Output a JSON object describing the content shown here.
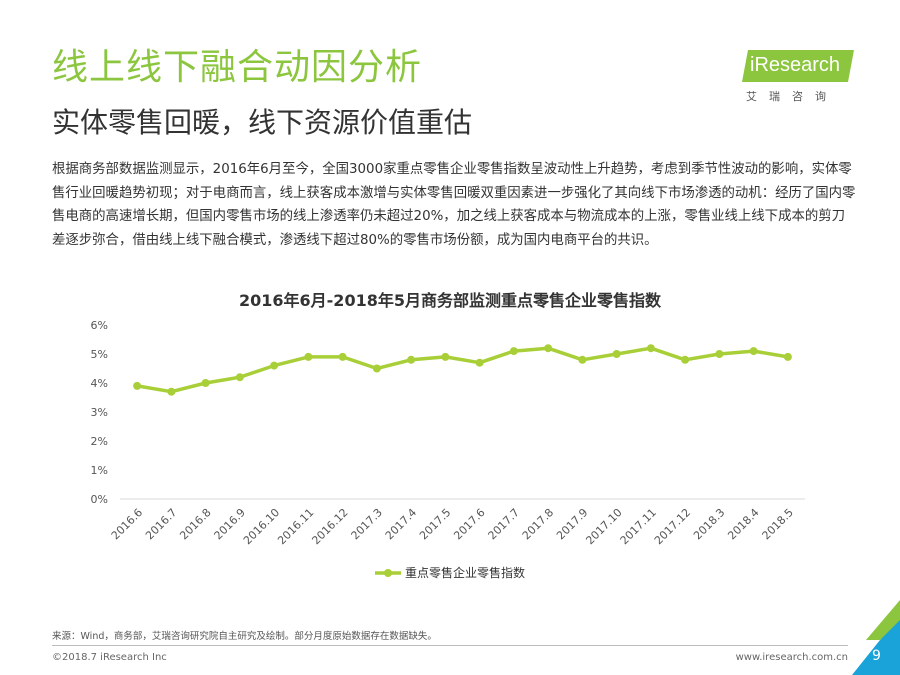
{
  "header": {
    "title": "线上线下融合动因分析",
    "subtitle": "实体零售回暖，线下资源价值重估"
  },
  "logo": {
    "name": "iResearch",
    "cn": "艾瑞咨询"
  },
  "body_text": "根据商务部数据监测显示，2016年6月至今，全国3000家重点零售企业零售指数呈波动性上升趋势，考虑到季节性波动的影响，实体零售行业回暖趋势初现；对于电商而言，线上获客成本激增与实体零售回暖双重因素进一步强化了其向线下市场渗透的动机：经历了国内零售电商的高速增长期，但国内零售市场的线上渗透率仍未超过20%，加之线上获客成本与物流成本的上涨，零售业线上线下成本的剪刀差逐步弥合，借由线上线下融合模式，渗透线下超过80%的零售市场份额，成为国内电商平台的共识。",
  "chart_data": {
    "type": "line",
    "title": "2016年6月-2018年5月商务部监测重点零售企业零售指数",
    "categories": [
      "2016.6",
      "2016.7",
      "2016.8",
      "2016.9",
      "2016.10",
      "2016.11",
      "2016.12",
      "2017.3",
      "2017.4",
      "2017.5",
      "2017.6",
      "2017.7",
      "2017.8",
      "2017.9",
      "2017.10",
      "2017.11",
      "2017.12",
      "2018.3",
      "2018.4",
      "2018.5"
    ],
    "series": [
      {
        "name": "重点零售企业零售指数",
        "values": [
          3.9,
          3.7,
          4.0,
          4.2,
          4.6,
          4.9,
          4.9,
          4.5,
          4.8,
          4.9,
          4.7,
          5.1,
          5.2,
          4.8,
          5.0,
          5.2,
          4.8,
          5.0,
          5.1,
          4.9
        ],
        "color": "#a8cf38"
      }
    ],
    "yticks": [
      "0%",
      "1%",
      "2%",
      "3%",
      "4%",
      "5%",
      "6%"
    ],
    "ylim": [
      0,
      6
    ],
    "xlabel": "",
    "ylabel": "",
    "grid": false,
    "legend": "bottom"
  },
  "footer": {
    "source": "来源：Wind，商务部，艾瑞咨询研究院自主研究及绘制。部分月度原始数据存在数据缺失。",
    "copyright": "©2018.7 iResearch Inc",
    "website": "www.iresearch.com.cn",
    "page": "9"
  },
  "colors": {
    "accent": "#8cc63f",
    "line": "#a8cf38",
    "corner_blue": "#1aa3d9"
  }
}
